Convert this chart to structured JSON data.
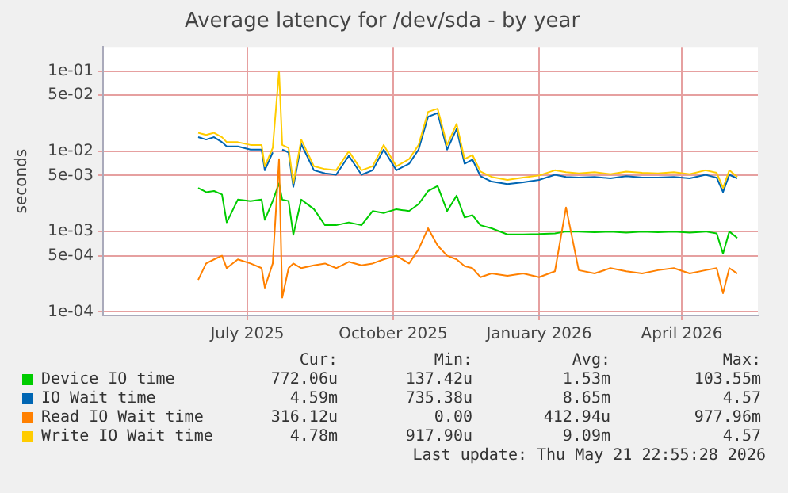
{
  "chart_data": {
    "type": "line",
    "title": "Average latency for /dev/sda - by year",
    "ylabel": "seconds",
    "log": true,
    "grid": true,
    "legend": "bottom",
    "ylim": [
      9e-05,
      0.2
    ],
    "yticks": [
      {
        "value": 0.0001,
        "label": "1e-04"
      },
      {
        "value": 0.0005,
        "label": "5e-04"
      },
      {
        "value": 0.001,
        "label": "1e-03"
      },
      {
        "value": 0.005,
        "label": "5e-03"
      },
      {
        "value": 0.01,
        "label": "1e-02"
      },
      {
        "value": 0.05,
        "label": "5e-02"
      },
      {
        "value": 0.1,
        "label": "1e-01"
      }
    ],
    "xlim": [
      "2025-04-16",
      "2026-06-03"
    ],
    "xticks": [
      {
        "value": "2025-07-16",
        "label": "July 2025"
      },
      {
        "value": "2025-10-16",
        "label": "October 2025"
      },
      {
        "value": "2026-01-16",
        "label": "January 2026"
      },
      {
        "value": "2026-04-16",
        "label": "April 2026"
      }
    ],
    "x": [
      "2025-06-15",
      "2025-06-20",
      "2025-06-25",
      "2025-06-30",
      "2025-07-03",
      "2025-07-10",
      "2025-07-18",
      "2025-07-25",
      "2025-07-27",
      "2025-08-01",
      "2025-08-05",
      "2025-08-07",
      "2025-08-11",
      "2025-08-14",
      "2025-08-19",
      "2025-08-27",
      "2025-09-03",
      "2025-09-10",
      "2025-09-18",
      "2025-09-26",
      "2025-10-03",
      "2025-10-10",
      "2025-10-18",
      "2025-10-26",
      "2025-11-01",
      "2025-11-07",
      "2025-11-13",
      "2025-11-19",
      "2025-11-25",
      "2025-11-30",
      "2025-12-05",
      "2025-12-10",
      "2025-12-17",
      "2025-12-27",
      "2026-01-06",
      "2026-01-16",
      "2026-01-26",
      "2026-02-02",
      "2026-02-10",
      "2026-02-20",
      "2026-03-02",
      "2026-03-12",
      "2026-03-22",
      "2026-04-01",
      "2026-04-11",
      "2026-04-21",
      "2026-05-01",
      "2026-05-08",
      "2026-05-12",
      "2026-05-16",
      "2026-05-21"
    ],
    "series": [
      {
        "name": "Device IO time",
        "color": "#00cc00",
        "values": [
          0.0035,
          0.0031,
          0.0032,
          0.0029,
          0.0013,
          0.0025,
          0.0024,
          0.0025,
          0.0014,
          0.0024,
          0.004,
          0.0025,
          0.0024,
          0.00091,
          0.0025,
          0.0019,
          0.0012,
          0.0012,
          0.0013,
          0.0012,
          0.0018,
          0.0017,
          0.0019,
          0.0018,
          0.0022,
          0.0032,
          0.0037,
          0.0018,
          0.0028,
          0.0015,
          0.0016,
          0.0012,
          0.0011,
          0.00092,
          0.00092,
          0.00093,
          0.00095,
          0.001,
          0.001,
          0.00098,
          0.001,
          0.00097,
          0.001,
          0.00098,
          0.001,
          0.00097,
          0.001,
          0.00095,
          0.00053,
          0.001,
          0.00083
        ]
      },
      {
        "name": "IO Wait time",
        "color": "#0066b3",
        "values": [
          0.015,
          0.014,
          0.015,
          0.013,
          0.0115,
          0.0115,
          0.0105,
          0.0105,
          0.0058,
          0.0097,
          null,
          0.0105,
          0.0097,
          0.0036,
          0.0123,
          0.0058,
          0.0053,
          0.0051,
          0.0088,
          0.0051,
          0.0058,
          0.0105,
          0.0058,
          0.007,
          0.0105,
          0.027,
          0.03,
          0.0105,
          0.019,
          0.007,
          0.0079,
          0.0049,
          0.0042,
          0.0039,
          0.0041,
          0.0044,
          0.0051,
          0.0048,
          0.0047,
          0.0048,
          0.0046,
          0.0049,
          0.0047,
          0.0047,
          0.0048,
          0.0046,
          0.0051,
          0.0047,
          0.0031,
          0.0051,
          0.0046
        ]
      },
      {
        "name": "Read IO Wait time",
        "color": "#ff8000",
        "values": [
          0.00025,
          0.0004,
          0.00045,
          0.0005,
          0.00035,
          0.00045,
          0.0004,
          0.00035,
          0.0002,
          0.0004,
          0.008,
          0.00015,
          0.00035,
          0.0004,
          0.00035,
          0.00038,
          0.0004,
          0.00035,
          0.00042,
          0.00038,
          0.0004,
          0.00045,
          0.0005,
          0.0004,
          0.0006,
          0.0011,
          0.00067,
          0.0005,
          0.00045,
          0.00037,
          0.00035,
          0.00027,
          0.0003,
          0.00028,
          0.0003,
          0.00027,
          0.00032,
          0.002,
          0.00033,
          0.0003,
          0.00035,
          0.00032,
          0.0003,
          0.00033,
          0.00035,
          0.0003,
          0.00033,
          0.00035,
          0.00017,
          0.00035,
          0.0003
        ]
      },
      {
        "name": "Write IO Wait time",
        "color": "#ffcc00",
        "values": [
          0.017,
          0.016,
          0.017,
          0.015,
          0.013,
          0.013,
          0.012,
          0.012,
          0.0065,
          0.011,
          0.1,
          0.012,
          0.011,
          0.004,
          0.014,
          0.0065,
          0.006,
          0.0058,
          0.01,
          0.0058,
          0.0065,
          0.012,
          0.0065,
          0.008,
          0.012,
          0.031,
          0.034,
          0.012,
          0.022,
          0.008,
          0.009,
          0.0056,
          0.0048,
          0.0044,
          0.0047,
          0.005,
          0.0058,
          0.0055,
          0.0053,
          0.0055,
          0.0052,
          0.0056,
          0.0054,
          0.0053,
          0.0055,
          0.0052,
          0.0058,
          0.0054,
          0.0035,
          0.0058,
          0.0048
        ]
      }
    ],
    "annotations": [
      "Cur:",
      "Min:",
      "Avg:",
      "Max:",
      "772.06u",
      "137.42u",
      "1.53m",
      "103.55m",
      "4.59m",
      "735.38u",
      "8.65m",
      "4.57",
      "316.12u",
      "0.00",
      "412.94u",
      "977.96m",
      "4.78m",
      "917.90u",
      "9.09m",
      "4.57",
      "Last update: Thu May 21 22:55:28 2026"
    ]
  }
}
